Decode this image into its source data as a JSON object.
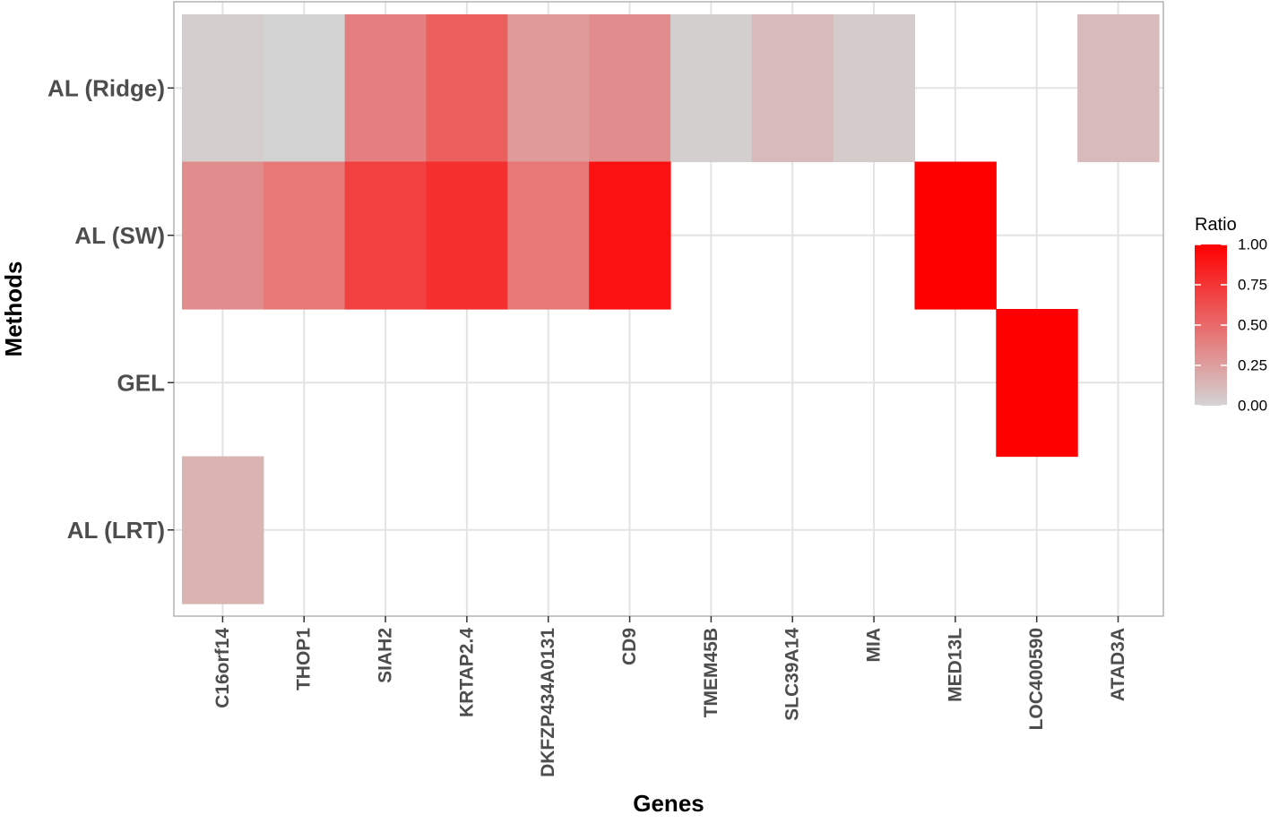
{
  "chart_data": {
    "type": "heatmap",
    "title": "",
    "xlabel": "Genes",
    "ylabel": "Methods",
    "x_categories": [
      "C16orf14",
      "THOP1",
      "SIAH2",
      "KRTAP2.4",
      "DKFZP434A0131",
      "CD9",
      "TMEM45B",
      "SLC39A14",
      "MIA",
      "MED13L",
      "LOC400590",
      "ATAD3A"
    ],
    "y_categories": [
      "AL (Ridge)",
      "AL (SW)",
      "GEL",
      "AL (LRT)"
    ],
    "cells": [
      {
        "x": "C16orf14",
        "y": "AL (Ridge)",
        "value": 0.03
      },
      {
        "x": "THOP1",
        "y": "AL (Ridge)",
        "value": 0.0
      },
      {
        "x": "SIAH2",
        "y": "AL (Ridge)",
        "value": 0.4
      },
      {
        "x": "KRTAP2.4",
        "y": "AL (Ridge)",
        "value": 0.55
      },
      {
        "x": "DKFZP434A0131",
        "y": "AL (Ridge)",
        "value": 0.27
      },
      {
        "x": "CD9",
        "y": "AL (Ridge)",
        "value": 0.33
      },
      {
        "x": "TMEM45B",
        "y": "AL (Ridge)",
        "value": 0.02
      },
      {
        "x": "SLC39A14",
        "y": "AL (Ridge)",
        "value": 0.12
      },
      {
        "x": "MIA",
        "y": "AL (Ridge)",
        "value": 0.04
      },
      {
        "x": "ATAD3A",
        "y": "AL (Ridge)",
        "value": 0.12
      },
      {
        "x": "C16orf14",
        "y": "AL (SW)",
        "value": 0.33
      },
      {
        "x": "THOP1",
        "y": "AL (SW)",
        "value": 0.43
      },
      {
        "x": "SIAH2",
        "y": "AL (SW)",
        "value": 0.7
      },
      {
        "x": "KRTAP2.4",
        "y": "AL (SW)",
        "value": 0.78
      },
      {
        "x": "DKFZP434A0131",
        "y": "AL (SW)",
        "value": 0.43
      },
      {
        "x": "CD9",
        "y": "AL (SW)",
        "value": 0.92
      },
      {
        "x": "MED13L",
        "y": "AL (SW)",
        "value": 1.0
      },
      {
        "x": "LOC400590",
        "y": "GEL",
        "value": 1.0
      },
      {
        "x": "C16orf14",
        "y": "AL (LRT)",
        "value": 0.15
      }
    ],
    "color_scale": {
      "low": "#d3d3d3",
      "high": "#ff0000"
    },
    "legend": {
      "title": "Ratio",
      "ticks": [
        "1.00",
        "0.75",
        "0.50",
        "0.25",
        "0.00"
      ],
      "position": "right"
    },
    "grid": true
  }
}
